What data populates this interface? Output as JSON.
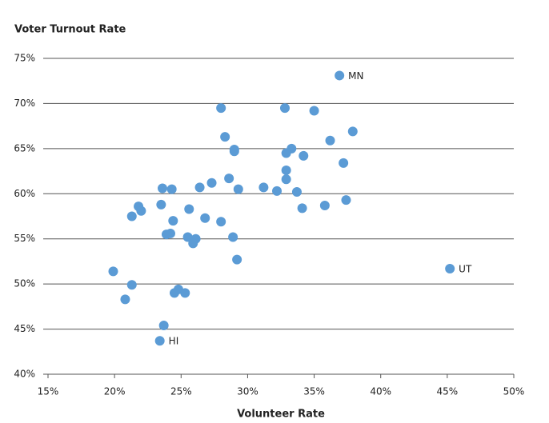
{
  "chart_data": {
    "type": "scatter",
    "y_label": "Voter Turnout Rate",
    "x_label": "Volunteer Rate",
    "color": "#5b9bd5",
    "grid": true,
    "xlim": [
      15,
      50
    ],
    "ylim": [
      40,
      75
    ],
    "xticks": [
      {
        "value": 15,
        "label": "15%"
      },
      {
        "value": 20,
        "label": "20%"
      },
      {
        "value": 25,
        "label": "25%"
      },
      {
        "value": 30,
        "label": "30%"
      },
      {
        "value": 35,
        "label": "35%"
      },
      {
        "value": 40,
        "label": "40%"
      },
      {
        "value": 45,
        "label": "45%"
      },
      {
        "value": 50,
        "label": "50%"
      }
    ],
    "yticks": [
      {
        "value": 40,
        "label": "40%"
      },
      {
        "value": 45,
        "label": "45%"
      },
      {
        "value": 50,
        "label": "50%"
      },
      {
        "value": 55,
        "label": "55%"
      },
      {
        "value": 60,
        "label": "60%"
      },
      {
        "value": 65,
        "label": "65%"
      },
      {
        "value": 70,
        "label": "70%"
      },
      {
        "value": 75,
        "label": "75%"
      }
    ],
    "x": [
      36.9,
      28.0,
      32.8,
      35.0,
      37.9,
      28.3,
      36.2,
      29.0,
      29.0,
      33.3,
      32.9,
      34.2,
      37.2,
      32.9,
      32.9,
      28.6,
      23.6,
      24.3,
      26.4,
      27.3,
      29.3,
      31.2,
      32.2,
      33.7,
      23.5,
      21.8,
      22.0,
      21.3,
      25.6,
      34.1,
      35.8,
      37.4,
      24.4,
      26.8,
      28.0,
      23.9,
      24.2,
      25.5,
      26.1,
      28.9,
      25.9,
      29.2,
      45.2,
      19.9,
      21.3,
      20.8,
      24.8,
      24.5,
      25.3,
      23.7,
      23.4
    ],
    "values": [
      73.1,
      69.5,
      69.5,
      69.2,
      66.9,
      66.3,
      65.9,
      64.9,
      64.7,
      65.0,
      64.5,
      64.2,
      63.4,
      62.6,
      61.6,
      61.7,
      60.6,
      60.5,
      60.7,
      61.2,
      60.5,
      60.7,
      60.3,
      60.2,
      58.8,
      58.6,
      58.1,
      57.5,
      58.3,
      58.4,
      58.7,
      59.3,
      57.0,
      57.3,
      56.9,
      55.5,
      55.6,
      55.2,
      55.0,
      55.2,
      54.5,
      52.7,
      51.7,
      51.4,
      49.9,
      48.3,
      49.4,
      49.0,
      49.0,
      45.4,
      43.7
    ],
    "labels": [
      "MN",
      null,
      null,
      null,
      null,
      null,
      null,
      null,
      null,
      null,
      null,
      null,
      null,
      null,
      null,
      null,
      null,
      null,
      null,
      null,
      null,
      null,
      null,
      null,
      null,
      null,
      null,
      null,
      null,
      null,
      null,
      null,
      null,
      null,
      null,
      null,
      null,
      null,
      null,
      null,
      null,
      null,
      "UT",
      null,
      null,
      null,
      null,
      null,
      null,
      null,
      "HI"
    ]
  }
}
